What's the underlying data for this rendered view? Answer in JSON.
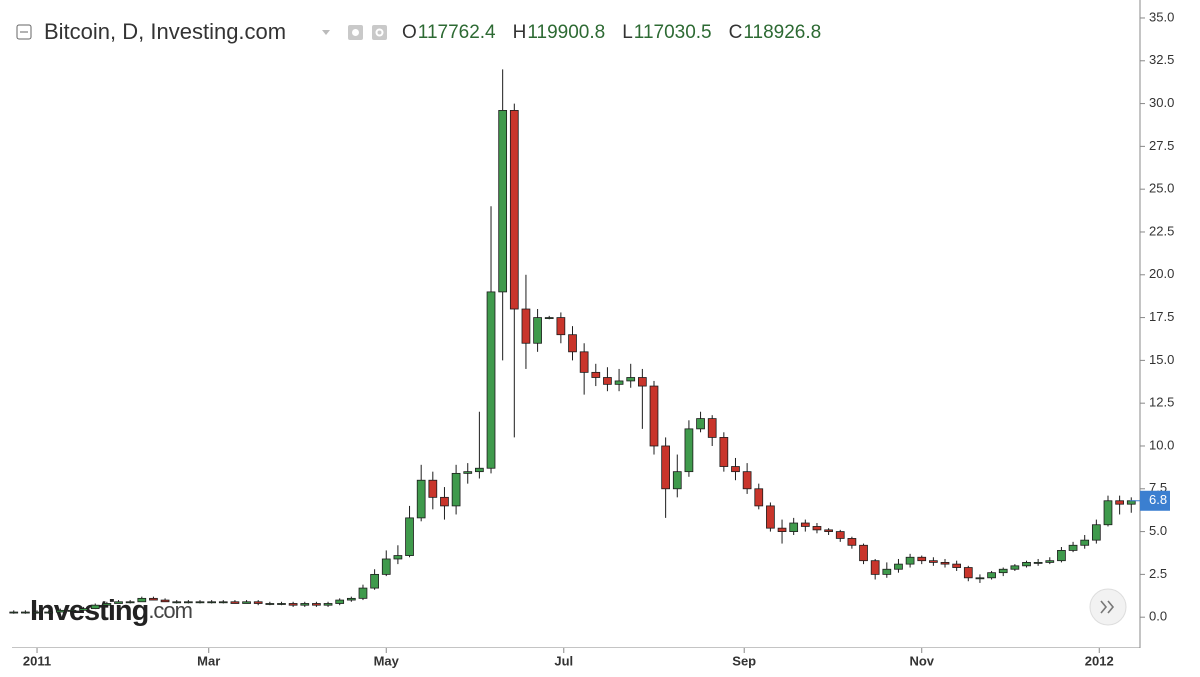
{
  "chart_data": {
    "type": "candlestick",
    "title": "Bitcoin, D, Investing.com",
    "quote": [
      {
        "label": "O",
        "value": 117762.4
      },
      {
        "label": "H",
        "value": 119900.8
      },
      {
        "label": "L",
        "value": 117030.5
      },
      {
        "label": "C",
        "value": 118926.8
      }
    ],
    "watermark": {
      "brand": "Investing",
      "suffix": ".com"
    },
    "last_value": 6.8,
    "up_color": "#3f9a4c",
    "down_color": "#c9352b",
    "outline_color": "#1c1c1c",
    "x": [
      -8,
      -4,
      0,
      4,
      8,
      12,
      16,
      20,
      24,
      28,
      32,
      36,
      40,
      44,
      48,
      52,
      56,
      60,
      64,
      68,
      72,
      76,
      80,
      84,
      88,
      92,
      96,
      100,
      104,
      108,
      112,
      116,
      120,
      124,
      128,
      132,
      136,
      140,
      144,
      148,
      152,
      156,
      160,
      164,
      168,
      172,
      176,
      180,
      184,
      188,
      192,
      196,
      200,
      204,
      208,
      212,
      216,
      220,
      224,
      228,
      232,
      236,
      240,
      244,
      248,
      252,
      256,
      260,
      264,
      268,
      272,
      276,
      280,
      284,
      288,
      292,
      296,
      300,
      304,
      308,
      312,
      316,
      320,
      324,
      328,
      332,
      336,
      340,
      344,
      348,
      352,
      356,
      360,
      364,
      368,
      372,
      376
    ],
    "open": [
      0.3,
      0.3,
      0.3,
      0.3,
      0.3,
      0.4,
      0.4,
      0.5,
      0.7,
      0.8,
      0.9,
      0.9,
      1.1,
      1.0,
      0.9,
      0.9,
      0.9,
      0.9,
      0.9,
      0.9,
      0.8,
      0.9,
      0.8,
      0.8,
      0.8,
      0.7,
      0.8,
      0.7,
      0.8,
      1.0,
      1.1,
      1.7,
      2.5,
      3.4,
      3.6,
      5.8,
      8.0,
      7.0,
      6.5,
      8.4,
      8.5,
      8.7,
      19.0,
      29.6,
      18.0,
      16.0,
      17.5,
      17.5,
      16.5,
      15.5,
      14.3,
      14.0,
      13.6,
      13.8,
      14.0,
      13.5,
      10.0,
      7.5,
      8.5,
      11.0,
      11.6,
      10.5,
      8.8,
      8.5,
      7.5,
      6.5,
      5.2,
      5.0,
      5.5,
      5.3,
      5.1,
      5.0,
      4.6,
      4.2,
      3.3,
      2.5,
      2.8,
      3.1,
      3.5,
      3.3,
      3.2,
      3.1,
      2.9,
      2.3,
      2.3,
      2.6,
      2.8,
      3.0,
      3.2,
      3.2,
      3.3,
      3.9,
      4.2,
      4.5,
      5.4,
      6.8,
      6.6
    ],
    "high": [
      0.4,
      0.4,
      0.4,
      0.4,
      0.5,
      0.5,
      0.6,
      0.8,
      0.9,
      1.0,
      1.0,
      1.2,
      1.2,
      1.1,
      1.0,
      1.0,
      1.0,
      1.0,
      1.0,
      1.0,
      1.0,
      1.0,
      0.9,
      0.9,
      0.9,
      0.9,
      0.9,
      0.9,
      1.1,
      1.2,
      1.9,
      2.8,
      3.9,
      4.2,
      6.5,
      8.9,
      8.5,
      7.6,
      8.9,
      9.0,
      12.0,
      24.0,
      32.0,
      30.0,
      20.0,
      18.0,
      17.6,
      17.8,
      17.0,
      16.0,
      14.8,
      14.6,
      14.5,
      14.8,
      14.5,
      13.8,
      10.5,
      9.5,
      11.5,
      12.0,
      11.8,
      10.8,
      9.3,
      9.0,
      7.8,
      6.7,
      5.7,
      5.8,
      5.7,
      5.5,
      5.2,
      5.1,
      4.7,
      4.3,
      3.4,
      3.2,
      3.4,
      3.7,
      3.6,
      3.5,
      3.4,
      3.3,
      3.0,
      2.5,
      2.7,
      2.9,
      3.1,
      3.3,
      3.4,
      3.5,
      4.1,
      4.4,
      4.8,
      5.7,
      7.1,
      7.1,
      7.0
    ],
    "low": [
      0.2,
      0.2,
      0.2,
      0.2,
      0.3,
      0.3,
      0.4,
      0.5,
      0.6,
      0.8,
      0.8,
      0.9,
      1.0,
      0.9,
      0.8,
      0.8,
      0.8,
      0.8,
      0.8,
      0.8,
      0.8,
      0.7,
      0.7,
      0.7,
      0.6,
      0.6,
      0.6,
      0.6,
      0.7,
      0.9,
      1.0,
      1.6,
      2.4,
      3.1,
      3.5,
      5.6,
      6.3,
      5.7,
      6.0,
      7.8,
      8.1,
      8.4,
      15.0,
      10.5,
      14.5,
      15.5,
      17.4,
      16.0,
      15.0,
      13.0,
      13.5,
      13.2,
      13.2,
      13.4,
      11.0,
      9.5,
      5.8,
      7.0,
      8.2,
      10.8,
      10.0,
      8.5,
      8.0,
      7.2,
      6.3,
      5.0,
      4.3,
      4.8,
      5.0,
      4.9,
      4.8,
      4.4,
      4.0,
      3.1,
      2.2,
      2.3,
      2.6,
      2.9,
      3.1,
      3.0,
      2.9,
      2.7,
      2.1,
      2.0,
      2.2,
      2.4,
      2.7,
      2.9,
      3.0,
      3.1,
      3.2,
      3.8,
      4.0,
      4.3,
      5.3,
      6.0,
      6.1
    ],
    "close": [
      0.3,
      0.3,
      0.3,
      0.3,
      0.4,
      0.4,
      0.5,
      0.7,
      0.8,
      0.9,
      0.9,
      1.1,
      1.0,
      0.9,
      0.9,
      0.9,
      0.9,
      0.9,
      0.9,
      0.8,
      0.9,
      0.8,
      0.8,
      0.8,
      0.7,
      0.8,
      0.7,
      0.8,
      1.0,
      1.1,
      1.7,
      2.5,
      3.4,
      3.6,
      5.8,
      8.0,
      7.0,
      6.5,
      8.4,
      8.5,
      8.7,
      19.0,
      29.6,
      18.0,
      16.0,
      17.5,
      17.5,
      16.5,
      15.5,
      14.3,
      14.0,
      13.6,
      13.8,
      14.0,
      13.5,
      10.0,
      7.5,
      8.5,
      11.0,
      11.6,
      10.5,
      8.8,
      8.5,
      7.5,
      6.5,
      5.2,
      5.0,
      5.5,
      5.3,
      5.1,
      5.0,
      4.6,
      4.2,
      3.3,
      2.5,
      2.8,
      3.1,
      3.5,
      3.3,
      3.2,
      3.1,
      2.9,
      2.3,
      2.3,
      2.6,
      2.8,
      3.0,
      3.2,
      3.2,
      3.3,
      3.9,
      4.2,
      4.5,
      5.4,
      6.8,
      6.6,
      6.8
    ],
    "xlim": [
      -8.6,
      379
    ],
    "xticks": [
      {
        "value": 0,
        "label": "2011"
      },
      {
        "value": 59,
        "label": "Mar"
      },
      {
        "value": 120,
        "label": "May"
      },
      {
        "value": 181,
        "label": "Jul"
      },
      {
        "value": 243,
        "label": "Sep"
      },
      {
        "value": 304,
        "label": "Nov"
      },
      {
        "value": 365,
        "label": "2012"
      }
    ],
    "ylim": [
      -1.8,
      36.05
    ],
    "yticks": [
      {
        "value": 0,
        "label": "0.0"
      },
      2.5,
      {
        "value": 5,
        "label": "5.0"
      },
      7.5,
      {
        "value": 10,
        "label": "10.0"
      },
      12.5,
      {
        "value": 15,
        "label": "15.0"
      },
      17.5,
      {
        "value": 20,
        "label": "20.0"
      },
      22.5,
      {
        "value": 25,
        "label": "25.0"
      },
      27.5,
      {
        "value": 30,
        "label": "30.0"
      },
      32.5,
      {
        "value": 35,
        "label": "35.0"
      }
    ]
  }
}
